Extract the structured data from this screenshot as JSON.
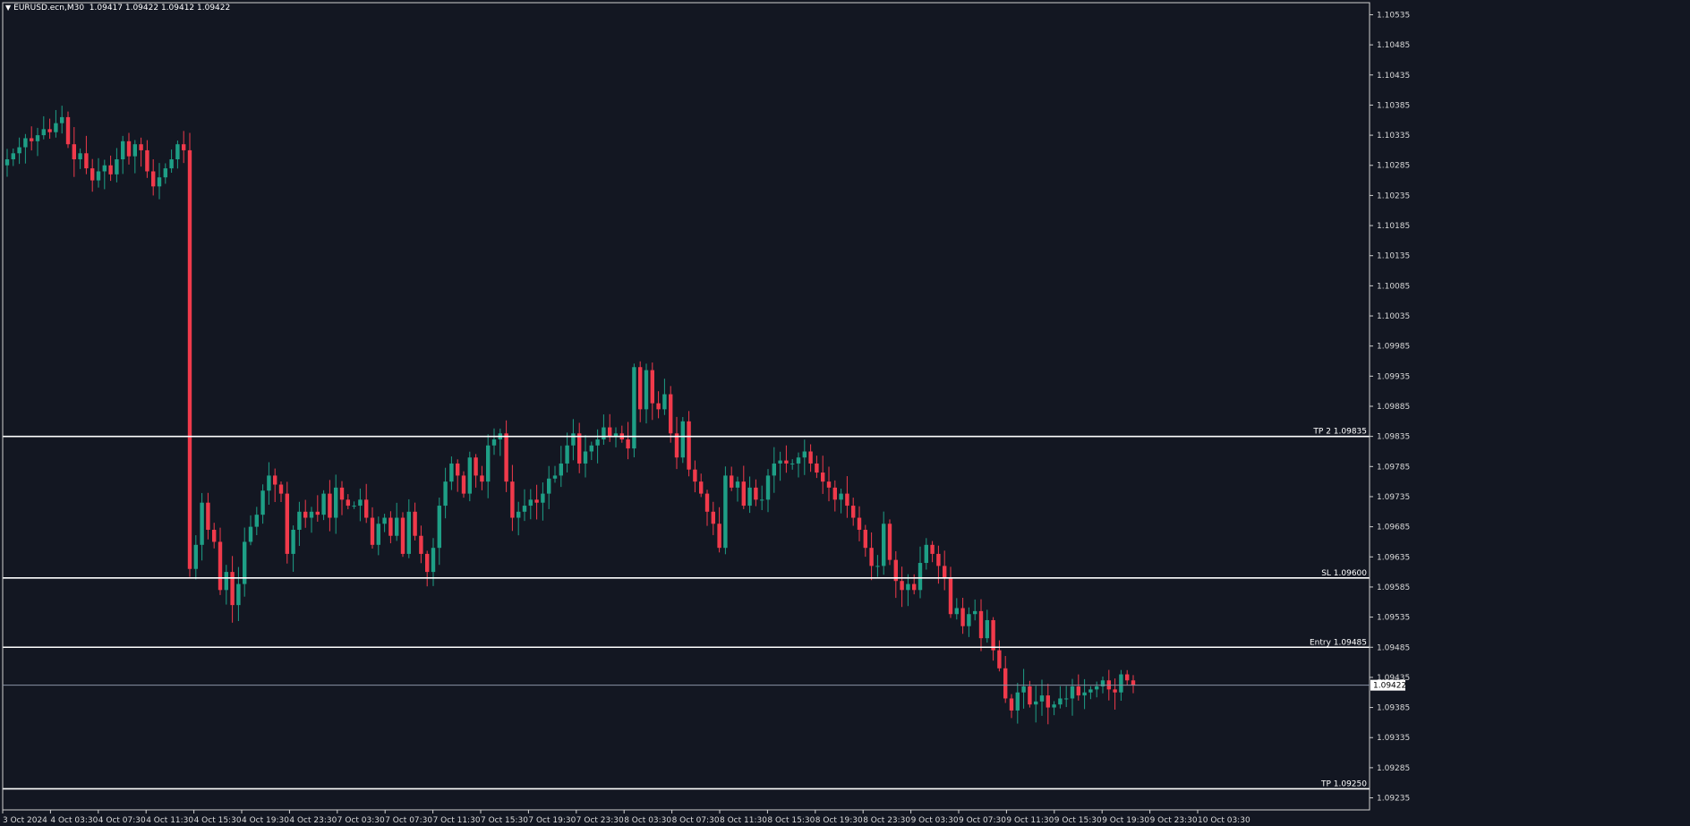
{
  "header": {
    "symbol": "EURUSD.ecn,M30",
    "ohlc": "1.09417 1.09422 1.09412 1.09422"
  },
  "colors": {
    "background": "#131722",
    "bull": "#1e9f86",
    "bear": "#f03a4b",
    "hline": "#ffffff",
    "bid_line": "#8a93a6"
  },
  "chart_data": {
    "type": "candlestick",
    "price_range": [
      1.09215,
      1.10555
    ],
    "grid": false,
    "y_ticks": [
      "1.10535",
      "1.10485",
      "1.10435",
      "1.10385",
      "1.10335",
      "1.10285",
      "1.10235",
      "1.10185",
      "1.10135",
      "1.10085",
      "1.10035",
      "1.09985",
      "1.09935",
      "1.09885",
      "1.09835",
      "1.09785",
      "1.09735",
      "1.09685",
      "1.09635",
      "1.09585",
      "1.09535",
      "1.09485",
      "1.09435",
      "1.09385",
      "1.09335",
      "1.09285",
      "1.09235"
    ],
    "x_ticks": [
      "3 Oct 2024",
      "4 Oct 03:30",
      "4 Oct 07:30",
      "4 Oct 11:30",
      "4 Oct 15:30",
      "4 Oct 19:30",
      "4 Oct 23:30",
      "7 Oct 03:30",
      "7 Oct 07:30",
      "7 Oct 11:30",
      "7 Oct 15:30",
      "7 Oct 19:30",
      "7 Oct 23:30",
      "8 Oct 03:30",
      "8 Oct 07:30",
      "8 Oct 11:30",
      "8 Oct 15:30",
      "8 Oct 19:30",
      "8 Oct 23:30",
      "9 Oct 03:30",
      "9 Oct 07:30",
      "9 Oct 11:30",
      "9 Oct 15:30",
      "9 Oct 19:30",
      "9 Oct 23:30",
      "10 Oct 03:30"
    ],
    "current_price": "1.09422",
    "levels": [
      {
        "label": "TP 2 1.09835",
        "price": 1.09835
      },
      {
        "label": "SL 1.09600",
        "price": 1.096
      },
      {
        "label": "Entry 1.09485",
        "price": 1.09485
      },
      {
        "label": "TP 1.09250",
        "price": 1.0925
      }
    ],
    "closes": [
      1.10295,
      1.10305,
      1.10315,
      1.1033,
      1.10325,
      1.10335,
      1.10345,
      1.1034,
      1.10355,
      1.10365,
      1.1032,
      1.10295,
      1.10305,
      1.1028,
      1.1026,
      1.10275,
      1.10285,
      1.1027,
      1.10295,
      1.10325,
      1.103,
      1.1032,
      1.1031,
      1.10275,
      1.1025,
      1.10265,
      1.1028,
      1.10295,
      1.1032,
      1.1031,
      1.09615,
      1.09655,
      1.09725,
      1.0968,
      1.0966,
      1.0958,
      1.0961,
      1.09555,
      1.0959,
      1.0966,
      1.09685,
      1.09705,
      1.09745,
      1.0977,
      1.09755,
      1.0974,
      1.0964,
      1.0968,
      1.0971,
      1.097,
      1.0971,
      1.09705,
      1.0974,
      1.097,
      1.0975,
      1.0973,
      1.0972,
      1.0972,
      1.0973,
      1.097,
      1.09655,
      1.0969,
      1.097,
      1.0967,
      1.097,
      1.0964,
      1.0971,
      1.0967,
      1.0964,
      1.0961,
      1.0965,
      1.0972,
      1.0976,
      1.0979,
      1.0977,
      1.0974,
      1.098,
      1.0977,
      1.0976,
      1.0982,
      1.0983,
      1.0984,
      1.0976,
      1.097,
      1.0971,
      1.0972,
      1.0973,
      1.09725,
      1.0974,
      1.09765,
      1.0977,
      1.0979,
      1.0982,
      1.0984,
      1.0979,
      1.0981,
      1.0982,
      1.0983,
      1.0985,
      1.09835,
      1.0984,
      1.0983,
      1.09815,
      1.0995,
      1.0988,
      1.09945,
      1.0989,
      1.0988,
      1.09905,
      1.0984,
      1.098,
      1.0986,
      1.0978,
      1.0976,
      1.0974,
      1.0971,
      1.0969,
      1.0965,
      1.0977,
      1.0975,
      1.0976,
      1.0972,
      1.0975,
      1.0973,
      1.0973,
      1.0977,
      1.0979,
      1.09795,
      1.0979,
      1.0979,
      1.098,
      1.0981,
      1.0979,
      1.09775,
      1.0976,
      1.0975,
      1.0973,
      1.0974,
      1.0972,
      1.097,
      1.0968,
      1.0965,
      1.0962,
      1.0962,
      1.0969,
      1.0963,
      1.09595,
      1.0958,
      1.0959,
      1.0958,
      1.09625,
      1.09655,
      1.0964,
      1.0962,
      1.096,
      1.0954,
      1.0955,
      1.0952,
      1.0954,
      1.09545,
      1.095,
      1.0953,
      1.0948,
      1.0945,
      1.094,
      1.0938,
      1.0941,
      1.0942,
      1.0939,
      1.09395,
      1.09405,
      1.09385,
      1.0939,
      1.094,
      1.094,
      1.0942,
      1.09405,
      1.0941,
      1.09415,
      1.0942,
      1.0943,
      1.09415,
      1.0941,
      1.0944,
      1.0943,
      1.09422
    ]
  }
}
